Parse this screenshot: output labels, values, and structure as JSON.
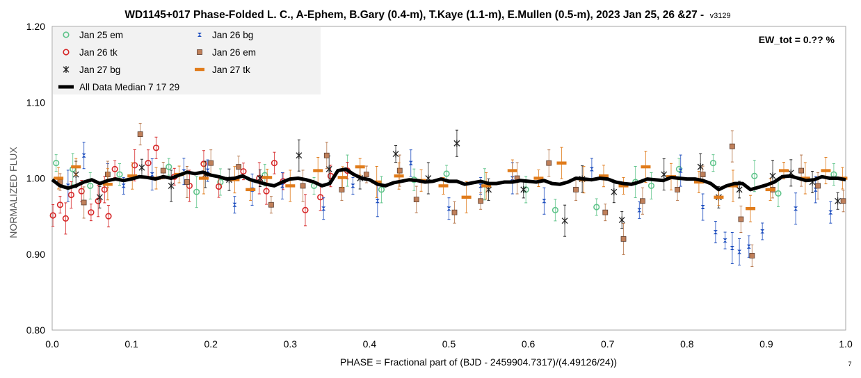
{
  "chart_data": {
    "type": "scatter",
    "title": "WD1145+017 Phase-Folded L. C., A-Ephem, B.Gary (0.4-m), T.Kaye (1.1-m), E.Mullen (0.5-m), 2023 Jan 25, 26 &27 -",
    "title_suffix": "v3129",
    "xlabel": "PHASE = Fractional part of (BJD - 2459904.7317)/(4.49126/24))",
    "ylabel": "NORMALIZED FLUX",
    "xlim": [
      0.0,
      1.0
    ],
    "ylim": [
      0.8,
      1.2
    ],
    "x_ticks": [
      "0.0",
      "0.1",
      "0.2",
      "0.3",
      "0.4",
      "0.5",
      "0.6",
      "0.7",
      "0.8",
      "0.9",
      "1.0"
    ],
    "y_ticks": [
      "0.80",
      "0.90",
      "1.00",
      "1.10",
      "1.20"
    ],
    "grid": false,
    "legend_position": "top-left",
    "annotation": "EW_tot = 0.?? %",
    "corner_note": "7",
    "colors": {
      "Jan 25 em": "#5fc48a",
      "Jan 26 tk": "#d62728",
      "Jan 27 bg": "#222222",
      "Jan 26 bg": "#1f4fbf",
      "Jan 26 em": "#b5754a",
      "Jan 27 tk": "#e07b1a",
      "median": "#000000"
    },
    "series": [
      {
        "name": "Jan 25 em",
        "marker": "open-circle",
        "points": [
          [
            0.005,
            1.02
          ],
          [
            0.026,
            1.012
          ],
          [
            0.048,
            0.99
          ],
          [
            0.085,
            1.005
          ],
          [
            0.147,
            1.015
          ],
          [
            0.182,
            0.982
          ],
          [
            0.212,
            0.995
          ],
          [
            0.268,
            1.004
          ],
          [
            0.33,
            0.99
          ],
          [
            0.372,
            1.01
          ],
          [
            0.415,
            0.985
          ],
          [
            0.456,
            0.998
          ],
          [
            0.497,
            1.006
          ],
          [
            0.545,
            0.992
          ],
          [
            0.597,
            0.985
          ],
          [
            0.634,
            0.958
          ],
          [
            0.686,
            0.962
          ],
          [
            0.735,
            0.995
          ],
          [
            0.755,
            0.99
          ],
          [
            0.79,
            1.012
          ],
          [
            0.833,
            1.02
          ],
          [
            0.885,
            1.003
          ],
          [
            0.915,
            0.98
          ],
          [
            0.985,
            1.005
          ]
        ]
      },
      {
        "name": "Jan 26 tk",
        "marker": "open-circle",
        "points": [
          [
            0.001,
            0.951
          ],
          [
            0.01,
            0.965
          ],
          [
            0.017,
            0.947
          ],
          [
            0.024,
            0.978
          ],
          [
            0.037,
            0.983
          ],
          [
            0.049,
            0.955
          ],
          [
            0.058,
            0.97
          ],
          [
            0.066,
            0.985
          ],
          [
            0.071,
            0.95
          ],
          [
            0.079,
            1.012
          ],
          [
            0.104,
            1.017
          ],
          [
            0.121,
            1.02
          ],
          [
            0.131,
            1.04
          ],
          [
            0.154,
            1.002
          ],
          [
            0.173,
            0.99
          ],
          [
            0.191,
            1.019
          ],
          [
            0.21,
            0.989
          ],
          [
            0.241,
            1.009
          ],
          [
            0.261,
            1.0
          ],
          [
            0.27,
            0.983
          ],
          [
            0.28,
            1.02
          ],
          [
            0.291,
            0.996
          ],
          [
            0.319,
            0.958
          ],
          [
            0.338,
            0.975
          ],
          [
            0.351,
            1.003
          ],
          [
            0.372,
            1.01
          ]
        ]
      },
      {
        "name": "Jan 27 bg",
        "marker": "asterisk",
        "points": [
          [
            0.03,
            1.005
          ],
          [
            0.06,
            0.975
          ],
          [
            0.113,
            1.014
          ],
          [
            0.15,
            0.99
          ],
          [
            0.193,
            1.005
          ],
          [
            0.223,
            0.998
          ],
          [
            0.262,
            1.0
          ],
          [
            0.311,
            1.03
          ],
          [
            0.349,
            1.012
          ],
          [
            0.388,
            1.0
          ],
          [
            0.433,
            1.032
          ],
          [
            0.474,
            1.0
          ],
          [
            0.51,
            1.046
          ],
          [
            0.55,
            0.985
          ],
          [
            0.594,
            0.985
          ],
          [
            0.646,
            0.944
          ],
          [
            0.668,
            0.999
          ],
          [
            0.708,
            0.982
          ],
          [
            0.718,
            0.945
          ],
          [
            0.771,
            1.005
          ],
          [
            0.817,
            1.015
          ],
          [
            0.84,
            0.975
          ],
          [
            0.866,
            0.985
          ],
          [
            0.908,
            1.003
          ],
          [
            0.931,
            1.007
          ],
          [
            0.958,
            0.995
          ],
          [
            0.99,
            0.97
          ]
        ]
      },
      {
        "name": "Jan 26 bg",
        "marker": "bowtie",
        "points": [
          [
            0.02,
            0.99
          ],
          [
            0.04,
            1.03
          ],
          [
            0.07,
            1.005
          ],
          [
            0.09,
            0.99
          ],
          [
            0.126,
            1.005
          ],
          [
            0.166,
            1.009
          ],
          [
            0.196,
            1.01
          ],
          [
            0.23,
            0.965
          ],
          [
            0.252,
            0.985
          ],
          [
            0.29,
            0.99
          ],
          [
            0.342,
            0.96
          ],
          [
            0.379,
            0.99
          ],
          [
            0.41,
            0.97
          ],
          [
            0.452,
            1.02
          ],
          [
            0.5,
            0.96
          ],
          [
            0.54,
            0.99
          ],
          [
            0.58,
            1.0
          ],
          [
            0.62,
            0.97
          ],
          [
            0.68,
            1.012
          ],
          [
            0.74,
            0.958
          ],
          [
            0.792,
            1.01
          ],
          [
            0.82,
            0.962
          ],
          [
            0.836,
            0.929
          ],
          [
            0.848,
            0.918
          ],
          [
            0.857,
            0.908
          ],
          [
            0.866,
            0.903
          ],
          [
            0.878,
            0.91
          ],
          [
            0.895,
            0.93
          ],
          [
            0.937,
            0.96
          ],
          [
            0.962,
            0.985
          ],
          [
            0.981,
            0.955
          ]
        ]
      },
      {
        "name": "Jan 26 em",
        "marker": "square",
        "points": [
          [
            0.01,
            0.995
          ],
          [
            0.04,
            0.968
          ],
          [
            0.07,
            1.005
          ],
          [
            0.111,
            1.058
          ],
          [
            0.14,
            1.01
          ],
          [
            0.17,
            0.995
          ],
          [
            0.2,
            1.02
          ],
          [
            0.235,
            1.015
          ],
          [
            0.276,
            0.965
          ],
          [
            0.316,
            0.99
          ],
          [
            0.346,
            1.03
          ],
          [
            0.365,
            0.985
          ],
          [
            0.396,
            1.005
          ],
          [
            0.438,
            1.01
          ],
          [
            0.459,
            0.972
          ],
          [
            0.507,
            0.955
          ],
          [
            0.54,
            0.97
          ],
          [
            0.586,
            1.0
          ],
          [
            0.626,
            1.02
          ],
          [
            0.66,
            0.985
          ],
          [
            0.697,
            0.955
          ],
          [
            0.72,
            0.92
          ],
          [
            0.744,
            0.97
          ],
          [
            0.788,
            0.985
          ],
          [
            0.82,
            1.005
          ],
          [
            0.857,
            1.042
          ],
          [
            0.868,
            0.946
          ],
          [
            0.882,
            0.898
          ],
          [
            0.908,
            0.985
          ],
          [
            0.944,
            1.01
          ],
          [
            0.965,
            0.99
          ],
          [
            0.997,
            0.97
          ]
        ]
      },
      {
        "name": "Jan 27 tk",
        "marker": "dash",
        "points": [
          [
            0.008,
            1.0
          ],
          [
            0.03,
            1.015
          ],
          [
            0.07,
            0.992
          ],
          [
            0.101,
            1.003
          ],
          [
            0.131,
            1.0
          ],
          [
            0.16,
            1.005
          ],
          [
            0.191,
            1.0
          ],
          [
            0.23,
            0.998
          ],
          [
            0.25,
            0.985
          ],
          [
            0.271,
            1.001
          ],
          [
            0.3,
            0.99
          ],
          [
            0.335,
            1.01
          ],
          [
            0.366,
            1.001
          ],
          [
            0.388,
            1.015
          ],
          [
            0.409,
            0.995
          ],
          [
            0.437,
            1.003
          ],
          [
            0.465,
            0.997
          ],
          [
            0.493,
            0.99
          ],
          [
            0.522,
            0.975
          ],
          [
            0.547,
            0.99
          ],
          [
            0.58,
            1.01
          ],
          [
            0.613,
            1.0
          ],
          [
            0.642,
            1.02
          ],
          [
            0.67,
            0.998
          ],
          [
            0.695,
            1.003
          ],
          [
            0.72,
            0.99
          ],
          [
            0.748,
            1.015
          ],
          [
            0.78,
            1.002
          ],
          [
            0.815,
            0.995
          ],
          [
            0.84,
            0.975
          ],
          [
            0.858,
            0.99
          ],
          [
            0.88,
            0.96
          ],
          [
            0.905,
            0.985
          ],
          [
            0.922,
            1.01
          ],
          [
            0.949,
            1.0
          ],
          [
            0.975,
            1.01
          ],
          [
            0.996,
            1.0
          ]
        ]
      }
    ],
    "median": {
      "name": "All Data Median 7 17 29",
      "points": [
        [
          0.0,
          0.998
        ],
        [
          0.01,
          0.99
        ],
        [
          0.02,
          0.987
        ],
        [
          0.03,
          0.99
        ],
        [
          0.04,
          0.995
        ],
        [
          0.05,
          0.998
        ],
        [
          0.06,
          0.993
        ],
        [
          0.07,
          0.997
        ],
        [
          0.08,
          0.999
        ],
        [
          0.09,
          0.997
        ],
        [
          0.1,
          0.999
        ],
        [
          0.11,
          1.002
        ],
        [
          0.12,
          1.001
        ],
        [
          0.13,
          0.999
        ],
        [
          0.14,
          1.002
        ],
        [
          0.15,
          1.0
        ],
        [
          0.16,
          1.004
        ],
        [
          0.17,
          1.008
        ],
        [
          0.18,
          1.006
        ],
        [
          0.19,
          1.008
        ],
        [
          0.2,
          1.004
        ],
        [
          0.21,
          1.002
        ],
        [
          0.22,
          0.999
        ],
        [
          0.23,
          1.0
        ],
        [
          0.24,
          1.003
        ],
        [
          0.25,
          0.998
        ],
        [
          0.26,
          0.995
        ],
        [
          0.27,
          0.992
        ],
        [
          0.28,
          0.99
        ],
        [
          0.29,
          0.995
        ],
        [
          0.3,
          0.999
        ],
        [
          0.31,
          1.0
        ],
        [
          0.32,
          0.998
        ],
        [
          0.33,
          0.995
        ],
        [
          0.34,
          0.99
        ],
        [
          0.35,
          0.993
        ],
        [
          0.36,
          1.01
        ],
        [
          0.37,
          1.012
        ],
        [
          0.38,
          1.005
        ],
        [
          0.39,
          1.0
        ],
        [
          0.4,
          0.998
        ],
        [
          0.41,
          0.992
        ],
        [
          0.42,
          0.99
        ],
        [
          0.43,
          0.994
        ],
        [
          0.44,
          0.996
        ],
        [
          0.45,
          0.998
        ],
        [
          0.46,
          0.997
        ],
        [
          0.47,
          0.995
        ],
        [
          0.48,
          0.996
        ],
        [
          0.49,
          0.999
        ],
        [
          0.5,
          0.996
        ],
        [
          0.51,
          0.996
        ],
        [
          0.52,
          0.992
        ],
        [
          0.53,
          0.994
        ],
        [
          0.54,
          0.996
        ],
        [
          0.55,
          0.993
        ],
        [
          0.56,
          0.993
        ],
        [
          0.57,
          0.995
        ],
        [
          0.58,
          0.995
        ],
        [
          0.59,
          0.997
        ],
        [
          0.6,
          0.996
        ],
        [
          0.61,
          0.995
        ],
        [
          0.62,
          0.997
        ],
        [
          0.63,
          0.993
        ],
        [
          0.64,
          0.992
        ],
        [
          0.65,
          0.995
        ],
        [
          0.66,
          1.0
        ],
        [
          0.67,
          0.999
        ],
        [
          0.68,
          0.998
        ],
        [
          0.69,
          1.0
        ],
        [
          0.7,
          0.999
        ],
        [
          0.71,
          0.995
        ],
        [
          0.72,
          0.993
        ],
        [
          0.73,
          0.992
        ],
        [
          0.74,
          0.995
        ],
        [
          0.75,
          0.999
        ],
        [
          0.76,
          0.998
        ],
        [
          0.77,
          0.997
        ],
        [
          0.78,
          1.001
        ],
        [
          0.79,
          1.0
        ],
        [
          0.8,
          0.999
        ],
        [
          0.81,
          0.999
        ],
        [
          0.82,
          0.997
        ],
        [
          0.83,
          0.993
        ],
        [
          0.84,
          0.985
        ],
        [
          0.85,
          0.99
        ],
        [
          0.86,
          0.993
        ],
        [
          0.87,
          0.993
        ],
        [
          0.88,
          0.985
        ],
        [
          0.89,
          0.988
        ],
        [
          0.9,
          0.991
        ],
        [
          0.91,
          0.995
        ],
        [
          0.92,
          1.002
        ],
        [
          0.93,
          1.003
        ],
        [
          0.94,
          1.0
        ],
        [
          0.95,
          0.997
        ],
        [
          0.96,
          0.998
        ],
        [
          0.97,
          1.002
        ],
        [
          0.98,
          1.0
        ],
        [
          0.99,
          1.0
        ],
        [
          1.0,
          0.998
        ]
      ]
    }
  }
}
